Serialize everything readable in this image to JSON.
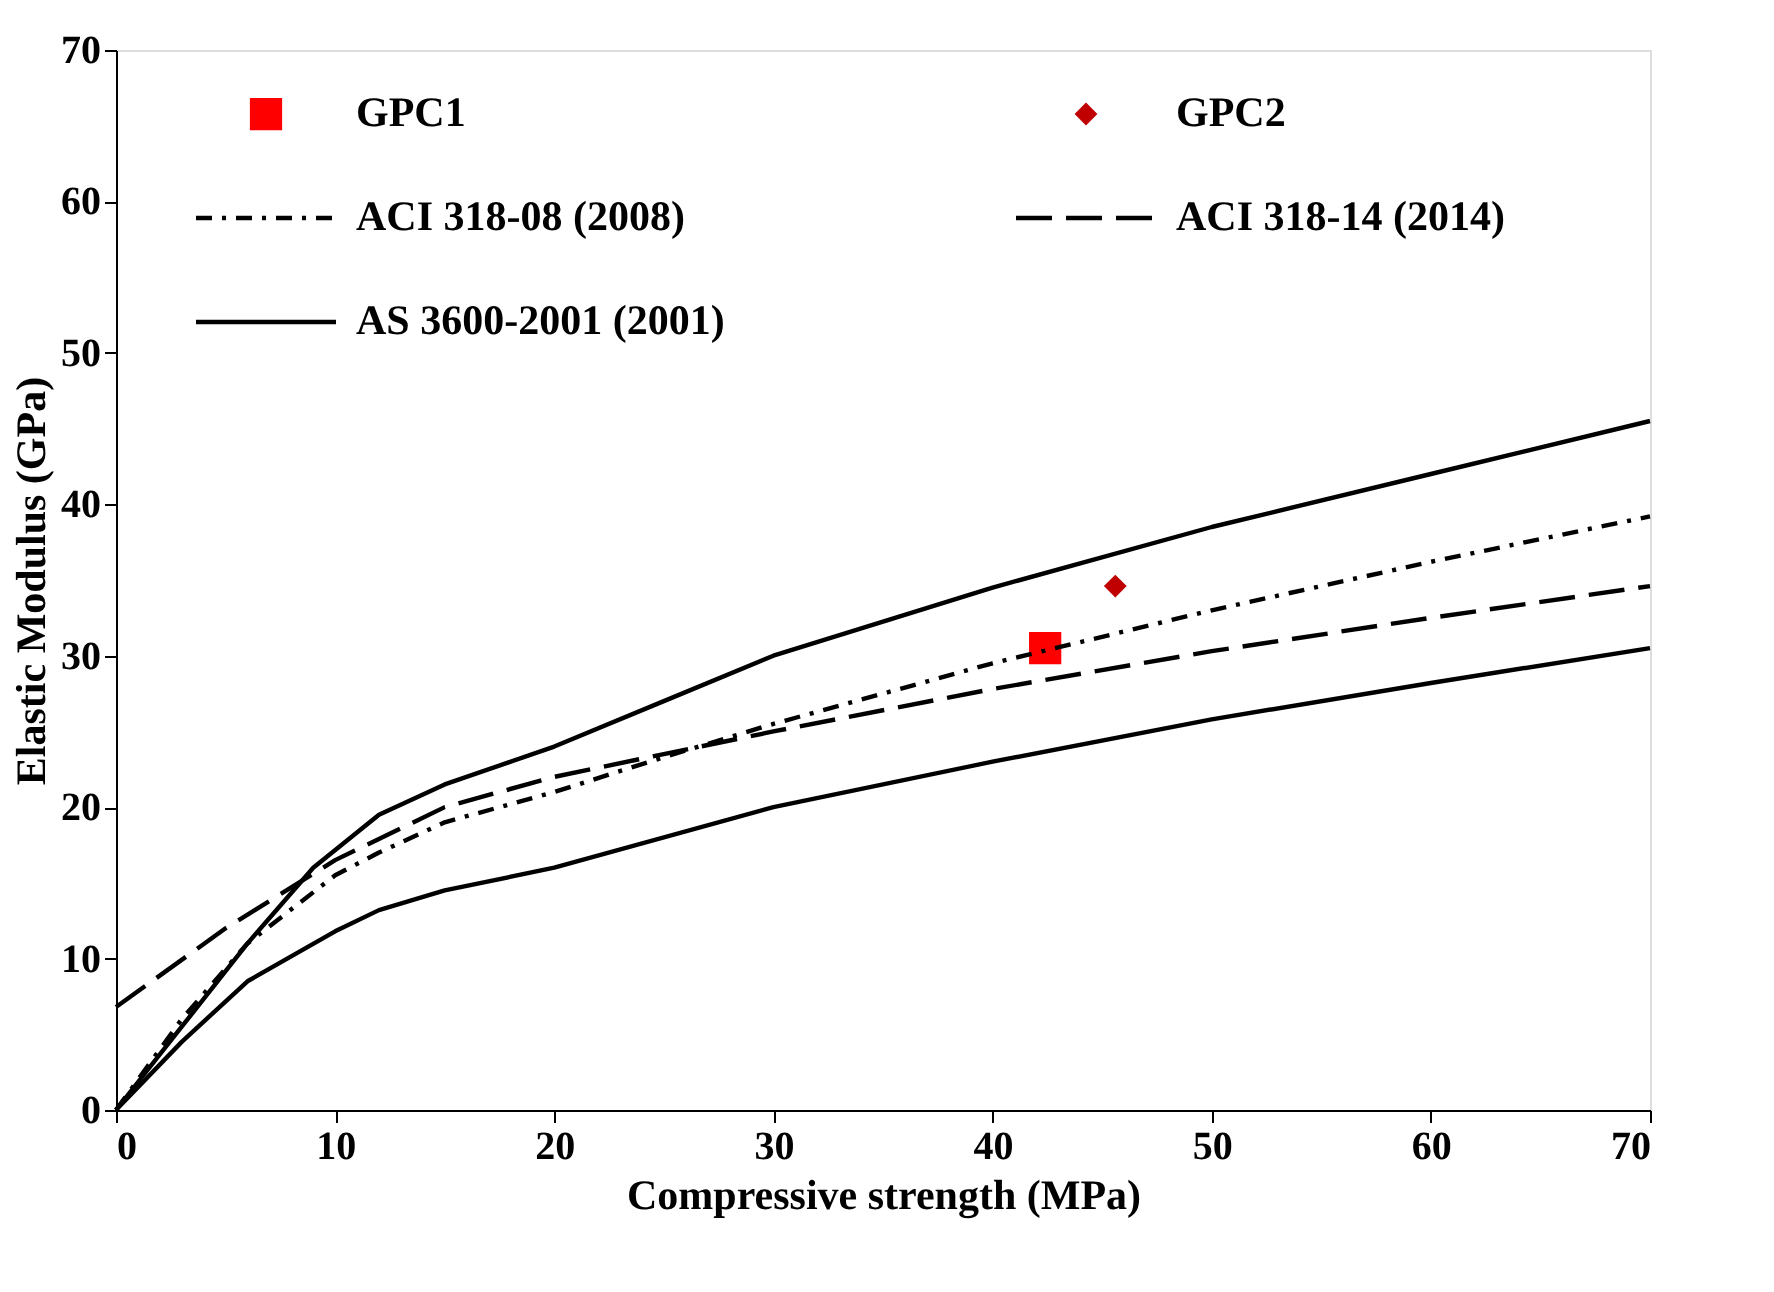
{
  "chart_data": {
    "type": "line",
    "xlabel": "Compressive strength (MPa)",
    "ylabel": "Elastic Modulus (GPa)",
    "xlim": [
      0,
      70
    ],
    "ylim": [
      0,
      70
    ],
    "xticks": [
      0,
      10,
      20,
      30,
      40,
      50,
      60,
      70
    ],
    "yticks": [
      0,
      10,
      20,
      30,
      40,
      50,
      60,
      70
    ],
    "grid": false,
    "legend": "top left",
    "series": [
      {
        "name": "GPC1",
        "type": "scatter",
        "marker": "square",
        "color": "#ff0000",
        "x": [
          42.4
        ],
        "values": [
          30.5
        ]
      },
      {
        "name": "GPC2",
        "type": "scatter",
        "marker": "diamond",
        "color": "#c00000",
        "x": [
          45.6
        ],
        "values": [
          34.6
        ]
      },
      {
        "name": "ACI 318-08 (2008)",
        "line_style": "dashdot",
        "color": "#000000",
        "x": [
          0,
          3,
          6,
          10,
          12,
          15,
          20,
          25,
          30,
          40,
          50,
          60,
          70
        ],
        "values": [
          0,
          6,
          11,
          15.5,
          17,
          19,
          21,
          23.3,
          25.5,
          29.5,
          33,
          36.2,
          39.2
        ]
      },
      {
        "name": "ACI 318-14 (2014)",
        "line_style": "dashed",
        "color": "#000000",
        "x": [
          0,
          5,
          10,
          15,
          20,
          30,
          40,
          50,
          60,
          70
        ],
        "values": [
          6.8,
          12,
          16.5,
          20,
          22,
          25,
          27.8,
          30.3,
          32.5,
          34.6
        ]
      },
      {
        "name": "AS 3600-2001 (2001)",
        "line_style": "solid",
        "color": "#000000",
        "x": [
          0,
          3,
          6,
          9,
          12,
          15,
          20,
          25,
          30,
          40,
          50,
          60,
          70
        ],
        "values": [
          0,
          5.5,
          11,
          16,
          19.5,
          21.5,
          24,
          27,
          30,
          34.5,
          38.5,
          42,
          45.5
        ]
      },
      {
        "line_style": "solid",
        "color": "#000000",
        "x": [
          0,
          3,
          6,
          10,
          12,
          15,
          20,
          30,
          40,
          50,
          60,
          70
        ],
        "values": [
          0,
          4.5,
          8.5,
          11.8,
          13.2,
          14.5,
          16,
          20,
          23,
          25.8,
          28.2,
          30.5
        ]
      }
    ]
  }
}
